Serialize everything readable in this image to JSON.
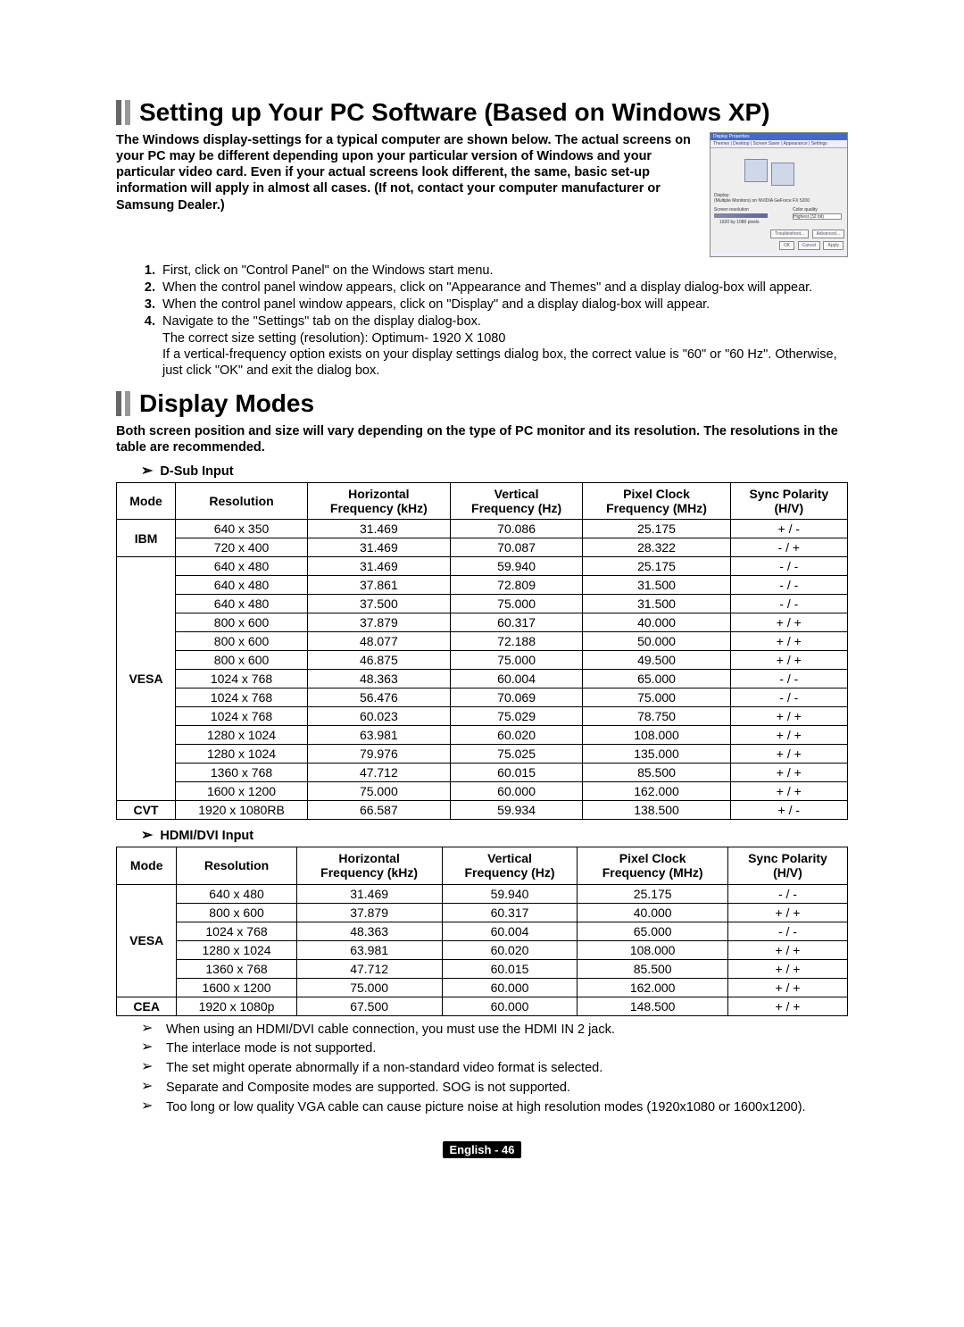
{
  "section1": {
    "title": "Setting up Your PC Software (Based on Windows XP)",
    "intro": "The Windows display-settings for a typical computer are shown below. The actual screens on your PC may be different depending upon your particular version of Windows and your particular video card. Even if your actual screens look different, the same, basic set-up information will apply in almost all cases. (If not, contact your computer manufacturer or Samsung Dealer.)",
    "steps": [
      "First, click on \"Control Panel\" on the Windows start menu.",
      "When the control panel window appears, click on \"Appearance and Themes\" and a display dialog-box will appear.",
      "When the control panel window appears, click on \"Display\" and a display dialog-box will appear.",
      "Navigate to the \"Settings\" tab on the display dialog-box.\nThe correct size setting (resolution): Optimum- 1920 X 1080\nIf a vertical-frequency option exists on your display settings dialog box, the correct value is \"60\" or \"60 Hz\". Otherwise, just click \"OK\" and exit the dialog box."
    ]
  },
  "section2": {
    "title": "Display Modes",
    "intro": "Both screen position and size will vary depending on the type of PC monitor and its resolution. The resolutions in the table are recommended.",
    "dsub_label": "D-Sub Input",
    "hdmi_label": "HDMI/DVI Input",
    "columns": [
      "Mode",
      "Resolution",
      "Horizontal\nFrequency (kHz)",
      "Vertical\nFrequency (Hz)",
      "Pixel Clock\nFrequency (MHz)",
      "Sync Polarity\n(H/V)"
    ],
    "dsub_groups": [
      {
        "mode": "IBM",
        "rows": [
          [
            "640 x 350",
            "31.469",
            "70.086",
            "25.175",
            "+ / -"
          ],
          [
            "720 x 400",
            "31.469",
            "70.087",
            "28.322",
            "- / +"
          ]
        ]
      },
      {
        "mode": "VESA",
        "rows": [
          [
            "640 x 480",
            "31.469",
            "59.940",
            "25.175",
            "- / -"
          ],
          [
            "640 x 480",
            "37.861",
            "72.809",
            "31.500",
            "- / -"
          ],
          [
            "640 x 480",
            "37.500",
            "75.000",
            "31.500",
            "- / -"
          ],
          [
            "800 x 600",
            "37.879",
            "60.317",
            "40.000",
            "+ / +"
          ],
          [
            "800 x 600",
            "48.077",
            "72.188",
            "50.000",
            "+ / +"
          ],
          [
            "800 x 600",
            "46.875",
            "75.000",
            "49.500",
            "+ / +"
          ],
          [
            "1024 x 768",
            "48.363",
            "60.004",
            "65.000",
            "- / -"
          ],
          [
            "1024 x 768",
            "56.476",
            "70.069",
            "75.000",
            "- / -"
          ],
          [
            "1024 x 768",
            "60.023",
            "75.029",
            "78.750",
            "+ / +"
          ],
          [
            "1280 x 1024",
            "63.981",
            "60.020",
            "108.000",
            "+ / +"
          ],
          [
            "1280 x 1024",
            "79.976",
            "75.025",
            "135.000",
            "+ / +"
          ],
          [
            "1360 x 768",
            "47.712",
            "60.015",
            "85.500",
            "+ / +"
          ],
          [
            "1600 x 1200",
            "75.000",
            "60.000",
            "162.000",
            "+ / +"
          ]
        ]
      },
      {
        "mode": "CVT",
        "rows": [
          [
            "1920 x 1080RB",
            "66.587",
            "59.934",
            "138.500",
            "+ / -"
          ]
        ]
      }
    ],
    "hdmi_groups": [
      {
        "mode": "VESA",
        "rows": [
          [
            "640 x 480",
            "31.469",
            "59.940",
            "25.175",
            "- / -"
          ],
          [
            "800 x 600",
            "37.879",
            "60.317",
            "40.000",
            "+ / +"
          ],
          [
            "1024 x 768",
            "48.363",
            "60.004",
            "65.000",
            "- / -"
          ],
          [
            "1280 x 1024",
            "63.981",
            "60.020",
            "108.000",
            "+ / +"
          ],
          [
            "1360 x 768",
            "47.712",
            "60.015",
            "85.500",
            "+ / +"
          ],
          [
            "1600 x 1200",
            "75.000",
            "60.000",
            "162.000",
            "+ / +"
          ]
        ]
      },
      {
        "mode": "CEA",
        "rows": [
          [
            "1920 x 1080p",
            "67.500",
            "60.000",
            "148.500",
            "+ / +"
          ]
        ]
      }
    ],
    "notes": [
      "When using an HDMI/DVI cable connection, you must use the HDMI IN 2 jack.",
      "The interlace mode is not supported.",
      "The set might operate abnormally if a non-standard video format is selected.",
      "Separate and Composite modes are supported. SOG is not supported.",
      "Too long or low quality VGA cable can cause picture noise at high resolution modes (1920x1080 or 1600x1200)."
    ]
  },
  "footer": "English - 46",
  "dialog": {
    "title": "Display Properties",
    "tabs": "Themes | Desktop | Screen Saver | Appearance | Settings",
    "btn_adv": "Advanced...",
    "btn_tb": "Troubleshoot...",
    "ok": "OK",
    "cancel": "Cancel",
    "apply": "Apply"
  }
}
